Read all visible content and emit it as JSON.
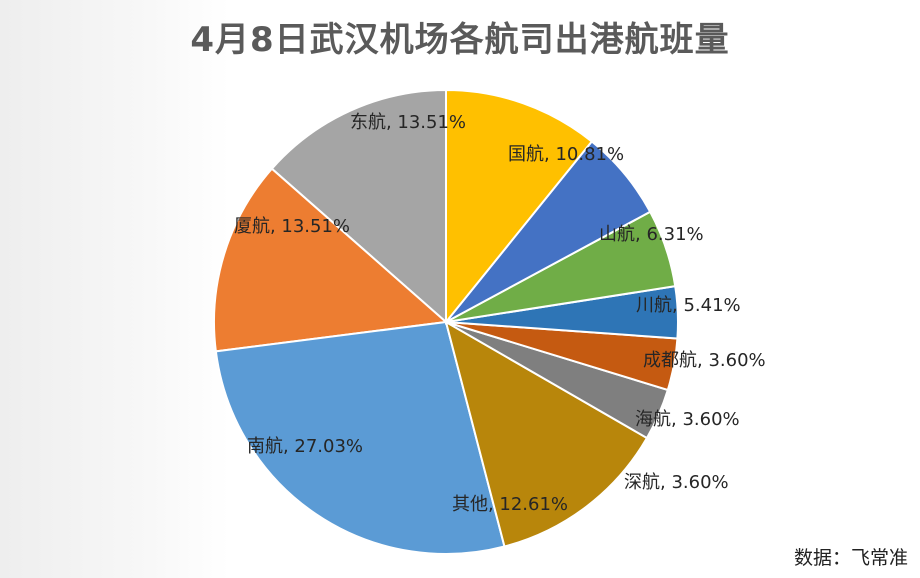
{
  "title": "4月8日武汉机场各航司出港航班量",
  "source": "数据：飞常准",
  "chart_data": {
    "type": "pie",
    "title": "4月8日武汉机场各航司出港航班量",
    "start_angle_deg": 90,
    "direction": "counterclockwise",
    "slices": [
      {
        "name": "东航",
        "value": 13.51,
        "label": "东航, 13.51%",
        "color": "#a5a5a5"
      },
      {
        "name": "厦航",
        "value": 13.51,
        "label": "厦航, 13.51%",
        "color": "#ed7d31"
      },
      {
        "name": "南航",
        "value": 27.03,
        "label": "南航, 27.03%",
        "color": "#5b9bd5"
      },
      {
        "name": "其他",
        "value": 12.61,
        "label": "其他, 12.61%",
        "color": "#b8860b"
      },
      {
        "name": "深航",
        "value": 3.6,
        "label": "深航, 3.60%",
        "color": "#7f7f7f"
      },
      {
        "name": "海航",
        "value": 3.6,
        "label": "海航, 3.60%",
        "color": "#c55a11"
      },
      {
        "name": "成都航",
        "value": 3.6,
        "label": "成都航, 3.60%",
        "color": "#2e75b6"
      },
      {
        "name": "川航",
        "value": 5.41,
        "label": "川航, 5.41%",
        "color": "#70ad47"
      },
      {
        "name": "山航",
        "value": 6.31,
        "label": "山航, 6.31%",
        "color": "#4472c4"
      },
      {
        "name": "国航",
        "value": 10.81,
        "label": "国航, 10.81%",
        "color": "#ffc000"
      }
    ]
  }
}
